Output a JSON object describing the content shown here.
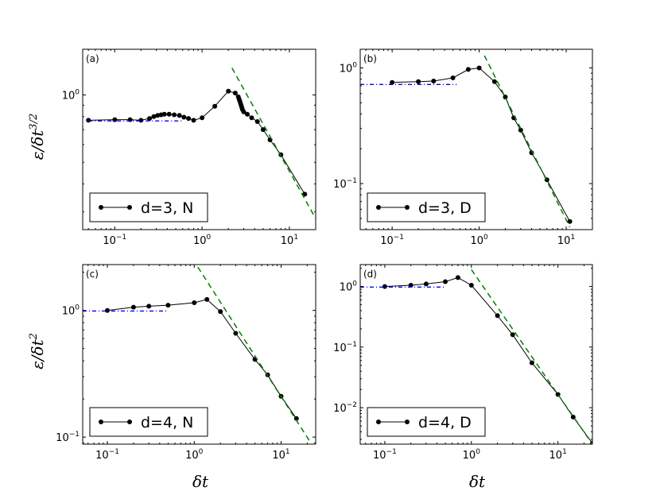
{
  "figure": {
    "ylabel_top": "ε/δt^(3/2)",
    "ylabel_bottom": "ε/δt^2",
    "xlabel": "δt"
  },
  "chart_data": [
    {
      "type": "line",
      "panel_label": "(a)",
      "xscale": "log",
      "yscale": "log",
      "xlim": [
        0.043,
        20
      ],
      "ylim": [
        0.25,
        1.6
      ],
      "xticks": [
        {
          "value": 0.1,
          "label": "10^-1"
        },
        {
          "value": 1,
          "label": "10^0"
        },
        {
          "value": 10,
          "label": "10^1"
        }
      ],
      "yticks": [
        {
          "value": 1,
          "label": "10^0"
        }
      ],
      "legend": {
        "label": "d=3, N",
        "position": "lower-left"
      },
      "series": [
        {
          "style": "black-solid-dots",
          "x": [
            0.05,
            0.1,
            0.15,
            0.2,
            0.25,
            0.28,
            0.31,
            0.34,
            0.37,
            0.42,
            0.48,
            0.55,
            0.62,
            0.7,
            0.8,
            1.0,
            1.4,
            2.0,
            2.4,
            2.6,
            2.65,
            2.7,
            2.75,
            2.8,
            2.85,
            2.9,
            3.0,
            3.3,
            3.7,
            4.3,
            5.0,
            6.0,
            8.0,
            15.0
          ],
          "y": [
            0.77,
            0.775,
            0.775,
            0.77,
            0.785,
            0.8,
            0.81,
            0.815,
            0.82,
            0.82,
            0.815,
            0.81,
            0.795,
            0.785,
            0.77,
            0.79,
            0.89,
            1.04,
            1.02,
            0.98,
            0.96,
            0.94,
            0.92,
            0.9,
            0.88,
            0.86,
            0.84,
            0.82,
            0.79,
            0.76,
            0.7,
            0.63,
            0.54,
            0.36
          ]
        },
        {
          "style": "blue-dashdot",
          "x": [
            0.05,
            0.6
          ],
          "y": [
            0.765,
            0.765
          ]
        },
        {
          "style": "green-dashed",
          "x": [
            2.2,
            20
          ],
          "y": [
            1.32,
            0.28
          ]
        }
      ]
    },
    {
      "type": "line",
      "panel_label": "(b)",
      "xscale": "log",
      "yscale": "log",
      "xlim": [
        0.043,
        20
      ],
      "ylim": [
        0.04,
        1.45
      ],
      "xticks": [
        {
          "value": 0.1,
          "label": "10^-1"
        },
        {
          "value": 1,
          "label": "10^0"
        },
        {
          "value": 10,
          "label": "10^1"
        }
      ],
      "yticks": [
        {
          "value": 0.1,
          "label": "10^-1"
        },
        {
          "value": 1,
          "label": "10^0"
        }
      ],
      "legend": {
        "label": "d=3, D",
        "position": "lower-left"
      },
      "series": [
        {
          "style": "black-solid-dots",
          "x": [
            0.1,
            0.2,
            0.3,
            0.5,
            0.75,
            1.0,
            1.5,
            2.0,
            2.5,
            3.0,
            4.0,
            6.0,
            11.0
          ],
          "y": [
            0.75,
            0.76,
            0.77,
            0.82,
            0.97,
            1.0,
            0.76,
            0.56,
            0.37,
            0.29,
            0.185,
            0.108,
            0.047
          ]
        },
        {
          "style": "blue-dashdot",
          "x": [
            0.043,
            0.55
          ],
          "y": [
            0.72,
            0.72
          ]
        },
        {
          "style": "green-dashed",
          "x": [
            1.15,
            11.0
          ],
          "y": [
            1.28,
            0.042
          ]
        }
      ]
    },
    {
      "type": "line",
      "panel_label": "(c)",
      "xscale": "log",
      "yscale": "log",
      "xlim": [
        0.052,
        25
      ],
      "ylim": [
        0.088,
        2.3
      ],
      "xticks": [
        {
          "value": 0.1,
          "label": "10^-1"
        },
        {
          "value": 1,
          "label": "10^0"
        },
        {
          "value": 10,
          "label": "10^1"
        }
      ],
      "yticks": [
        {
          "value": 0.1,
          "label": "10^-1"
        },
        {
          "value": 1,
          "label": "10^0"
        }
      ],
      "legend": {
        "label": "d=4, N",
        "position": "lower-left"
      },
      "series": [
        {
          "style": "black-solid-dots",
          "x": [
            0.1,
            0.2,
            0.3,
            0.5,
            1.0,
            1.4,
            2.0,
            3.0,
            5.0,
            7.0,
            10.0,
            15.0
          ],
          "y": [
            1.0,
            1.06,
            1.08,
            1.1,
            1.15,
            1.22,
            0.98,
            0.66,
            0.41,
            0.31,
            0.21,
            0.14
          ]
        },
        {
          "style": "blue-dashdot",
          "x": [
            0.052,
            0.5
          ],
          "y": [
            0.99,
            0.99
          ]
        },
        {
          "style": "green-dashed",
          "x": [
            1.1,
            22.0
          ],
          "y": [
            2.2,
            0.09
          ]
        }
      ]
    },
    {
      "type": "line",
      "panel_label": "(d)",
      "xscale": "log",
      "yscale": "log",
      "xlim": [
        0.052,
        25
      ],
      "ylim": [
        0.0025,
        2.3
      ],
      "xticks": [
        {
          "value": 0.1,
          "label": "10^-1"
        },
        {
          "value": 1,
          "label": "10^0"
        },
        {
          "value": 10,
          "label": "10^1"
        }
      ],
      "yticks": [
        {
          "value": 0.01,
          "label": "10^-2"
        },
        {
          "value": 0.1,
          "label": "10^-1"
        },
        {
          "value": 1,
          "label": "10^0"
        }
      ],
      "legend": {
        "label": "d=4, D",
        "position": "lower-left"
      },
      "series": [
        {
          "style": "black-solid-dots",
          "x": [
            0.1,
            0.2,
            0.3,
            0.5,
            0.7,
            1.0,
            2.0,
            3.0,
            5.0,
            10.0,
            15.0,
            25.0
          ],
          "y": [
            1.0,
            1.05,
            1.1,
            1.2,
            1.4,
            1.05,
            0.33,
            0.16,
            0.055,
            0.0165,
            0.007,
            0.0026
          ]
        },
        {
          "style": "blue-dashdot",
          "x": [
            0.052,
            0.5
          ],
          "y": [
            0.98,
            0.98
          ]
        },
        {
          "style": "green-dashed",
          "x": [
            1.0,
            25.0
          ],
          "y": [
            1.9,
            0.0025
          ]
        }
      ]
    }
  ]
}
